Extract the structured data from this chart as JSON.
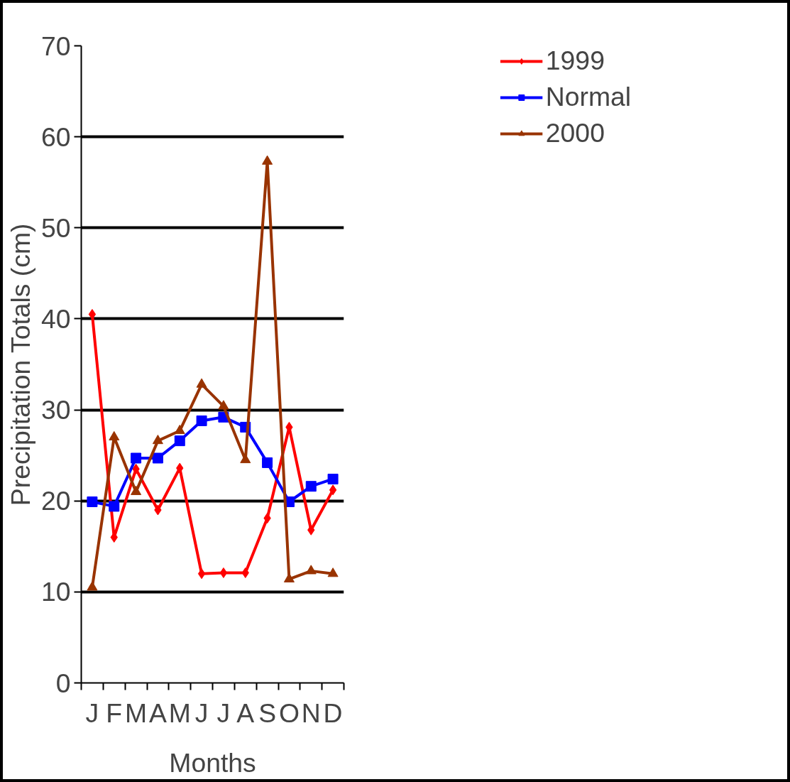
{
  "chart_data": {
    "type": "line",
    "xlabel": "Months",
    "ylabel": "Precipitation Totals (cm)",
    "categories": [
      "J",
      "F",
      "M",
      "A",
      "M",
      "J",
      "J",
      "A",
      "S",
      "O",
      "N",
      "D"
    ],
    "series": [
      {
        "name": "1999",
        "color": "#ff0000",
        "marker": "diamond",
        "values": [
          40.5,
          16.0,
          23.5,
          19.0,
          23.6,
          12.0,
          12.1,
          12.1,
          18.1,
          28.1,
          16.8,
          21.2
        ]
      },
      {
        "name": "Normal",
        "color": "#0000ff",
        "marker": "square",
        "values": [
          19.9,
          19.4,
          24.7,
          24.7,
          26.6,
          28.8,
          29.2,
          28.1,
          24.2,
          19.9,
          21.6,
          22.4
        ]
      },
      {
        "name": "2000",
        "color": "#993300",
        "marker": "triangle",
        "values": [
          10.5,
          27.0,
          21.0,
          26.6,
          27.7,
          32.8,
          30.4,
          24.5,
          57.3,
          11.4,
          12.3,
          12.0
        ]
      }
    ],
    "ylim": [
      0,
      70
    ],
    "yticks": [
      0,
      10,
      20,
      30,
      40,
      50,
      60,
      70
    ],
    "grid": "y",
    "legend": "right",
    "line_style": "solid"
  }
}
